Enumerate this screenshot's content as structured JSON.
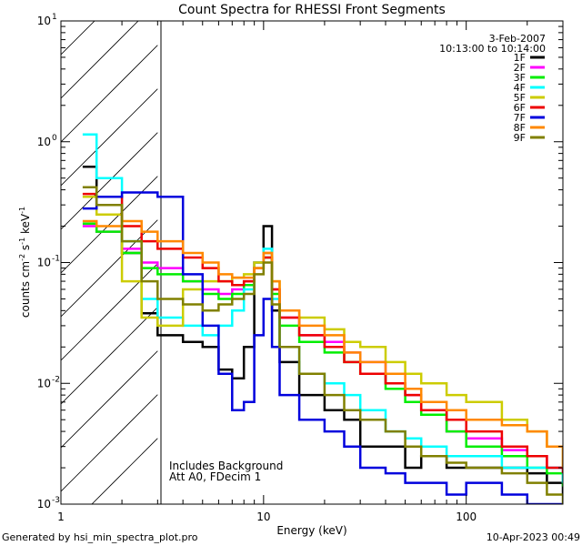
{
  "chart_data": {
    "type": "line",
    "title": "Count Spectra for RHESSI Front Segments",
    "xlabel": "Energy (keV)",
    "ylabel_parts": [
      "counts cm",
      "-2",
      " s",
      "-1",
      " keV",
      "-1"
    ],
    "xscale": "log",
    "yscale": "log",
    "xlim": [
      1,
      300
    ],
    "ylim": [
      0.001,
      10
    ],
    "x_ticks": [
      {
        "v": 1,
        "label": "1"
      },
      {
        "v": 10,
        "label": "10"
      },
      {
        "v": 100,
        "label": "100"
      }
    ],
    "y_ticks": [
      {
        "v": 0.001,
        "base": "10",
        "exp": "-3"
      },
      {
        "v": 0.01,
        "base": "10",
        "exp": "-2"
      },
      {
        "v": 0.1,
        "base": "10",
        "exp": "-1"
      },
      {
        "v": 1,
        "base": "10",
        "exp": "0"
      },
      {
        "v": 10,
        "base": "10",
        "exp": "1"
      }
    ],
    "hatched_region": {
      "x_from": 1,
      "x_to": 3
    },
    "legend_position": "top-right",
    "date": "3-Feb-2007",
    "time_range": "10:13:00 to 10:14:00",
    "annotations": [
      "Includes Background",
      "Att A0, FDecim 1"
    ],
    "series": [
      {
        "name": "1F",
        "color": "#000000",
        "points": [
          [
            1.28,
            0.62
          ],
          [
            1.5,
            0.3
          ],
          [
            2,
            0.12
          ],
          [
            2.5,
            0.038
          ],
          [
            3,
            0.025
          ],
          [
            4,
            0.022
          ],
          [
            5,
            0.02
          ],
          [
            6,
            0.013
          ],
          [
            7,
            0.011
          ],
          [
            8,
            0.02
          ],
          [
            9,
            0.1
          ],
          [
            10,
            0.2
          ],
          [
            11,
            0.04
          ],
          [
            12,
            0.015
          ],
          [
            15,
            0.008
          ],
          [
            20,
            0.006
          ],
          [
            25,
            0.005
          ],
          [
            30,
            0.003
          ],
          [
            40,
            0.003
          ],
          [
            50,
            0.002
          ],
          [
            60,
            0.0025
          ],
          [
            80,
            0.002
          ],
          [
            100,
            0.002
          ],
          [
            150,
            0.002
          ],
          [
            200,
            0.0018
          ],
          [
            250,
            0.0015
          ],
          [
            300,
            0.0012
          ]
        ]
      },
      {
        "name": "2F",
        "color": "#ff00ff",
        "points": [
          [
            1.28,
            0.2
          ],
          [
            1.5,
            0.18
          ],
          [
            2,
            0.13
          ],
          [
            2.5,
            0.1
          ],
          [
            3,
            0.09
          ],
          [
            4,
            0.07
          ],
          [
            5,
            0.06
          ],
          [
            6,
            0.055
          ],
          [
            7,
            0.06
          ],
          [
            8,
            0.07
          ],
          [
            9,
            0.1
          ],
          [
            10,
            0.12
          ],
          [
            11,
            0.06
          ],
          [
            12,
            0.035
          ],
          [
            15,
            0.025
          ],
          [
            20,
            0.022
          ],
          [
            25,
            0.018
          ],
          [
            30,
            0.015
          ],
          [
            40,
            0.01
          ],
          [
            50,
            0.008
          ],
          [
            60,
            0.006
          ],
          [
            80,
            0.004
          ],
          [
            100,
            0.0035
          ],
          [
            150,
            0.0028
          ],
          [
            200,
            0.0025
          ],
          [
            250,
            0.002
          ],
          [
            300,
            0.0015
          ]
        ]
      },
      {
        "name": "3F",
        "color": "#00ee00",
        "points": [
          [
            1.28,
            0.21
          ],
          [
            1.5,
            0.18
          ],
          [
            2,
            0.12
          ],
          [
            2.5,
            0.09
          ],
          [
            3,
            0.08
          ],
          [
            4,
            0.07
          ],
          [
            5,
            0.055
          ],
          [
            6,
            0.05
          ],
          [
            7,
            0.055
          ],
          [
            8,
            0.065
          ],
          [
            9,
            0.09
          ],
          [
            10,
            0.11
          ],
          [
            11,
            0.055
          ],
          [
            12,
            0.03
          ],
          [
            15,
            0.022
          ],
          [
            20,
            0.018
          ],
          [
            25,
            0.015
          ],
          [
            30,
            0.012
          ],
          [
            40,
            0.009
          ],
          [
            50,
            0.007
          ],
          [
            60,
            0.0055
          ],
          [
            80,
            0.004
          ],
          [
            100,
            0.003
          ],
          [
            150,
            0.0025
          ],
          [
            200,
            0.002
          ],
          [
            250,
            0.0018
          ],
          [
            300,
            0.0014
          ]
        ]
      },
      {
        "name": "4F",
        "color": "#00ffff",
        "points": [
          [
            1.28,
            1.15
          ],
          [
            1.5,
            0.5
          ],
          [
            2,
            0.15
          ],
          [
            2.5,
            0.05
          ],
          [
            3,
            0.035
          ],
          [
            4,
            0.03
          ],
          [
            5,
            0.025
          ],
          [
            6,
            0.03
          ],
          [
            7,
            0.04
          ],
          [
            8,
            0.06
          ],
          [
            9,
            0.1
          ],
          [
            10,
            0.13
          ],
          [
            11,
            0.05
          ],
          [
            12,
            0.02
          ],
          [
            15,
            0.012
          ],
          [
            20,
            0.01
          ],
          [
            25,
            0.008
          ],
          [
            30,
            0.006
          ],
          [
            40,
            0.004
          ],
          [
            50,
            0.0035
          ],
          [
            60,
            0.003
          ],
          [
            80,
            0.0025
          ],
          [
            100,
            0.0025
          ],
          [
            150,
            0.002
          ],
          [
            200,
            0.002
          ],
          [
            250,
            0.002
          ],
          [
            300,
            0.0015
          ]
        ]
      },
      {
        "name": "5F",
        "color": "#cccc00",
        "points": [
          [
            1.28,
            0.35
          ],
          [
            1.5,
            0.25
          ],
          [
            2,
            0.07
          ],
          [
            2.5,
            0.035
          ],
          [
            3,
            0.03
          ],
          [
            4,
            0.06
          ],
          [
            5,
            0.07
          ],
          [
            6,
            0.07
          ],
          [
            7,
            0.075
          ],
          [
            8,
            0.08
          ],
          [
            9,
            0.1
          ],
          [
            10,
            0.12
          ],
          [
            11,
            0.07
          ],
          [
            12,
            0.04
          ],
          [
            15,
            0.035
          ],
          [
            20,
            0.028
          ],
          [
            25,
            0.022
          ],
          [
            30,
            0.02
          ],
          [
            40,
            0.015
          ],
          [
            50,
            0.012
          ],
          [
            60,
            0.01
          ],
          [
            80,
            0.008
          ],
          [
            100,
            0.007
          ],
          [
            150,
            0.005
          ],
          [
            200,
            0.004
          ],
          [
            250,
            0.003
          ],
          [
            300,
            0.002
          ]
        ]
      },
      {
        "name": "6F",
        "color": "#ee0000",
        "points": [
          [
            1.28,
            0.37
          ],
          [
            1.5,
            0.35
          ],
          [
            2,
            0.2
          ],
          [
            2.5,
            0.15
          ],
          [
            3,
            0.13
          ],
          [
            4,
            0.11
          ],
          [
            5,
            0.09
          ],
          [
            6,
            0.07
          ],
          [
            7,
            0.065
          ],
          [
            8,
            0.07
          ],
          [
            9,
            0.09
          ],
          [
            10,
            0.11
          ],
          [
            11,
            0.06
          ],
          [
            12,
            0.035
          ],
          [
            15,
            0.025
          ],
          [
            20,
            0.02
          ],
          [
            25,
            0.015
          ],
          [
            30,
            0.012
          ],
          [
            40,
            0.01
          ],
          [
            50,
            0.008
          ],
          [
            60,
            0.006
          ],
          [
            80,
            0.005
          ],
          [
            100,
            0.004
          ],
          [
            150,
            0.003
          ],
          [
            200,
            0.0025
          ],
          [
            250,
            0.002
          ],
          [
            300,
            0.0018
          ]
        ]
      },
      {
        "name": "7F",
        "color": "#0000dd",
        "points": [
          [
            1.28,
            0.28
          ],
          [
            1.5,
            0.35
          ],
          [
            2,
            0.38
          ],
          [
            2.5,
            0.38
          ],
          [
            3,
            0.35
          ],
          [
            4,
            0.08
          ],
          [
            5,
            0.03
          ],
          [
            6,
            0.012
          ],
          [
            7,
            0.006
          ],
          [
            8,
            0.007
          ],
          [
            9,
            0.025
          ],
          [
            10,
            0.05
          ],
          [
            11,
            0.02
          ],
          [
            12,
            0.008
          ],
          [
            15,
            0.005
          ],
          [
            20,
            0.004
          ],
          [
            25,
            0.003
          ],
          [
            30,
            0.002
          ],
          [
            40,
            0.0018
          ],
          [
            50,
            0.0015
          ],
          [
            60,
            0.0015
          ],
          [
            80,
            0.0012
          ],
          [
            100,
            0.0015
          ],
          [
            150,
            0.0012
          ],
          [
            200,
            0.001
          ],
          [
            250,
            0.001
          ],
          [
            300,
            0.001
          ]
        ]
      },
      {
        "name": "8F",
        "color": "#ff8800",
        "points": [
          [
            1.28,
            0.22
          ],
          [
            1.5,
            0.2
          ],
          [
            2,
            0.22
          ],
          [
            2.5,
            0.18
          ],
          [
            3,
            0.15
          ],
          [
            4,
            0.12
          ],
          [
            5,
            0.1
          ],
          [
            6,
            0.08
          ],
          [
            7,
            0.075
          ],
          [
            8,
            0.075
          ],
          [
            9,
            0.09
          ],
          [
            10,
            0.12
          ],
          [
            11,
            0.07
          ],
          [
            12,
            0.04
          ],
          [
            15,
            0.03
          ],
          [
            20,
            0.025
          ],
          [
            25,
            0.018
          ],
          [
            30,
            0.015
          ],
          [
            40,
            0.012
          ],
          [
            50,
            0.009
          ],
          [
            60,
            0.007
          ],
          [
            80,
            0.006
          ],
          [
            100,
            0.005
          ],
          [
            150,
            0.0045
          ],
          [
            200,
            0.004
          ],
          [
            250,
            0.003
          ],
          [
            300,
            0.002
          ]
        ]
      },
      {
        "name": "9F",
        "color": "#808000",
        "points": [
          [
            1.28,
            0.42
          ],
          [
            1.5,
            0.3
          ],
          [
            2,
            0.15
          ],
          [
            2.5,
            0.07
          ],
          [
            3,
            0.05
          ],
          [
            4,
            0.045
          ],
          [
            5,
            0.04
          ],
          [
            6,
            0.045
          ],
          [
            7,
            0.05
          ],
          [
            8,
            0.055
          ],
          [
            9,
            0.08
          ],
          [
            10,
            0.1
          ],
          [
            11,
            0.045
          ],
          [
            12,
            0.02
          ],
          [
            15,
            0.012
          ],
          [
            20,
            0.008
          ],
          [
            25,
            0.006
          ],
          [
            30,
            0.005
          ],
          [
            40,
            0.004
          ],
          [
            50,
            0.003
          ],
          [
            60,
            0.0025
          ],
          [
            80,
            0.0022
          ],
          [
            100,
            0.002
          ],
          [
            150,
            0.0018
          ],
          [
            200,
            0.0015
          ],
          [
            250,
            0.0012
          ],
          [
            300,
            0.001
          ]
        ]
      }
    ]
  },
  "footer": {
    "left": "Generated by hsi_min_spectra_plot.pro",
    "right": "10-Apr-2023 00:49"
  }
}
